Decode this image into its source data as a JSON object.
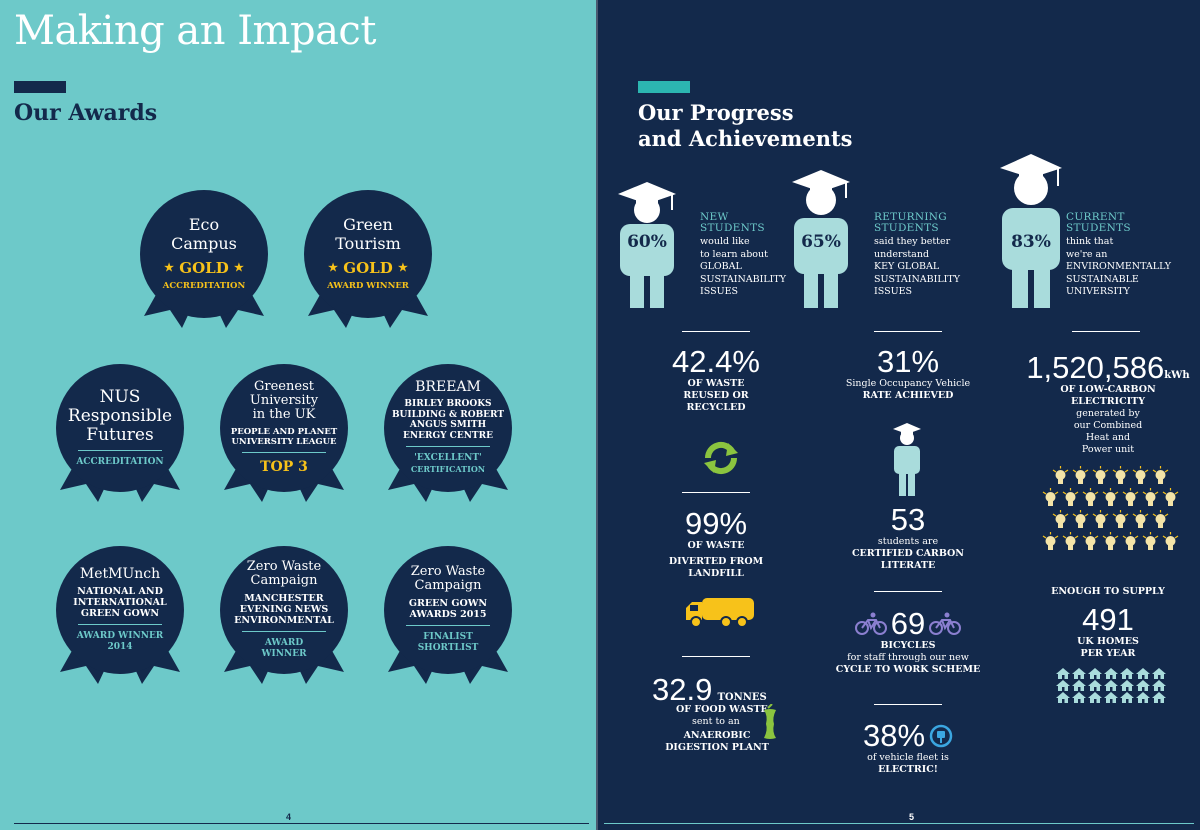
{
  "left_page": {
    "title": "Making an Impact",
    "section_title": "Our Awards",
    "page_number": "4",
    "awards": [
      {
        "title1": "Eco",
        "title2": "Campus",
        "gold": "GOLD",
        "sub": "ACCREDITATION"
      },
      {
        "title1": "Green",
        "title2": "Tourism",
        "gold": "GOLD",
        "sub": "AWARD WINNER"
      },
      {
        "title1": "NUS",
        "title2": "Responsible",
        "title3": "Futures",
        "teal": "ACCREDITATION"
      },
      {
        "title1": "Greenest",
        "title2": "University",
        "title3": "in the UK",
        "body1": "PEOPLE AND PLANET",
        "body2": "UNIVERSITY LEAGUE",
        "yellow": "TOP 3"
      },
      {
        "title1": "BREEAM",
        "body1": "BIRLEY BROOKS",
        "body2": "BUILDING & ROBERT",
        "body3": "ANGUS SMITH",
        "body4": "ENERGY CENTRE",
        "teal": "'EXCELLENT'",
        "sub": "CERTIFICATION"
      },
      {
        "title1": "MetMUnch",
        "body1": "NATIONAL AND",
        "body2": "INTERNATIONAL",
        "body3": "GREEN GOWN",
        "teal1": "AWARD WINNER",
        "teal2": "2014"
      },
      {
        "title1": "Zero Waste",
        "title2": "Campaign",
        "body1": "MANCHESTER",
        "body2": "EVENING NEWS",
        "body3": "ENVIRONMENTAL",
        "teal1": "AWARD",
        "teal2": "WINNER"
      },
      {
        "title1": "Zero Waste",
        "title2": "Campaign",
        "body1": "GREEN GOWN",
        "body2": "AWARDS 2015",
        "teal1": "FINALIST",
        "teal2": "SHORTLIST"
      }
    ]
  },
  "right_page": {
    "section_title_line1": "Our Progress",
    "section_title_line2": "and Achievements",
    "page_number": "5",
    "students": [
      {
        "pct": "60%",
        "label1": "NEW",
        "label2": "STUDENTS",
        "desc": [
          "would like",
          "to learn about",
          "GLOBAL",
          "SUSTAINABILITY",
          "ISSUES"
        ]
      },
      {
        "pct": "65%",
        "label1": "RETURNING",
        "label2": "STUDENTS",
        "desc": [
          "said they better",
          "understand",
          "KEY GLOBAL",
          "SUSTAINABILITY",
          "ISSUES"
        ]
      },
      {
        "pct": "83%",
        "label1": "CURRENT",
        "label2": "STUDENTS",
        "desc": [
          "think that",
          "we're an",
          "ENVIRONMENTALLY",
          "SUSTAINABLE",
          "UNIVERSITY"
        ]
      }
    ],
    "waste": {
      "value": "42.4%",
      "line1": "OF WASTE",
      "line2": "REUSED OR",
      "line3": "RECYCLED"
    },
    "diverted": {
      "value": "99%",
      "line1": "OF WASTE",
      "line2": "DIVERTED FROM",
      "line3": "LANDFILL"
    },
    "food": {
      "value": "32.9",
      "unit": "TONNES",
      "line1": "OF FOOD WASTE",
      "line2": "sent to an",
      "line3": "ANAEROBIC",
      "line4": "DIGESTION PLANT"
    },
    "occupancy": {
      "value": "31%",
      "line1": "Single Occupancy Vehicle",
      "line2": "RATE ACHIEVED"
    },
    "carbon": {
      "value": "53",
      "line1": "students are",
      "line2": "CERTIFIED CARBON",
      "line3": "LITERATE"
    },
    "bicycles": {
      "value": "69",
      "line1": "BICYCLES",
      "line2": "for staff through our new",
      "line3": "CYCLE TO WORK SCHEME"
    },
    "vehicles": {
      "value": "38%",
      "line1": "of vehicle fleet is",
      "line2": "ELECTRIC!"
    },
    "electricity": {
      "value": "1,520,586",
      "unit": "kWh",
      "line1": "OF LOW-CARBON",
      "line2": "ELECTRICITY",
      "line3": "generated by",
      "line4": "our Combined",
      "line5": "Heat and",
      "line6": "Power unit"
    },
    "homes": {
      "intro": "ENOUGH TO SUPPLY",
      "value": "491",
      "line1": "UK HOMES",
      "line2": "PER YEAR"
    }
  },
  "colors": {
    "teal_bg": "#6dc9c9",
    "navy": "#13294b",
    "gold": "#f7c21a",
    "figure": "#a9dcdc",
    "purple": "#8b7fd0",
    "green": "#8bc43f",
    "truck": "#f7c21a"
  },
  "icons": [
    "graduate-icon",
    "recycle-icon",
    "truck-icon",
    "apple-core-icon",
    "bicycle-icon",
    "plug-icon",
    "lightbulb-icon",
    "house-icon"
  ]
}
